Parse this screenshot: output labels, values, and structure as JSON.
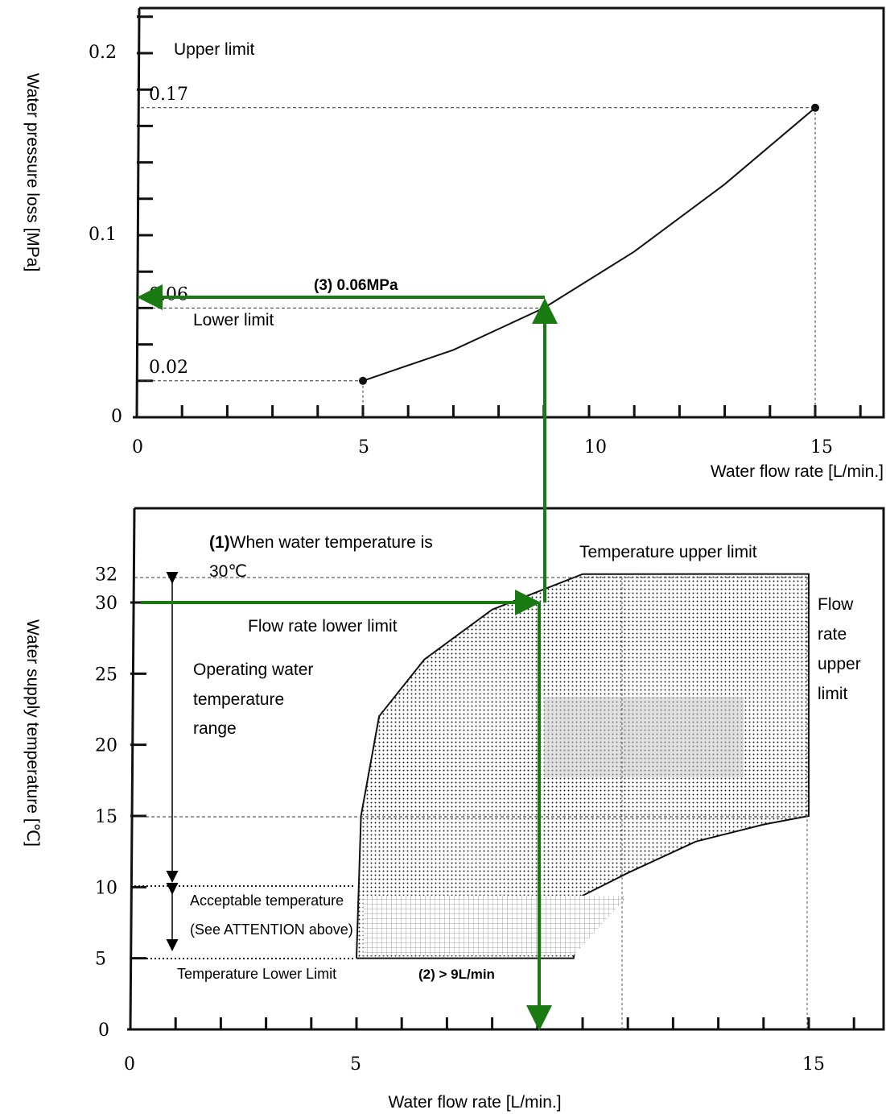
{
  "chart_data": [
    {
      "type": "line",
      "title": "",
      "xlabel": "Water flow rate [L/min.]",
      "ylabel": "Water pressure loss [MPa]",
      "xlim": [
        0,
        16
      ],
      "ylim": [
        0,
        0.23
      ],
      "x_ticks": [
        "0",
        "5",
        "10",
        "15"
      ],
      "y_ticks": [
        "0",
        "0.1",
        "0.2"
      ],
      "series": [
        {
          "x": [
            5,
            7,
            9,
            11,
            13,
            15
          ],
          "y": [
            0.02,
            0.037,
            0.06,
            0.091,
            0.128,
            0.17
          ]
        }
      ],
      "reference_values": [
        {
          "label": "0.17",
          "x": 15,
          "y": 0.17
        },
        {
          "label": "0.06",
          "x": 9,
          "y": 0.06
        },
        {
          "label": "0.02",
          "x": 5,
          "y": 0.02
        }
      ],
      "annotations": {
        "upper_limit": "Upper limit",
        "lower_limit": "Lower limit",
        "step3": "(3) 0.06MPa"
      }
    },
    {
      "type": "area",
      "title": "",
      "xlabel": "Water flow rate [L/min.]",
      "ylabel": "Water supply temperature [℃]",
      "xlim": [
        0,
        16
      ],
      "ylim": [
        0,
        36
      ],
      "x_ticks": [
        "0",
        "5",
        "15"
      ],
      "y_ticks": [
        "0",
        "5",
        "10",
        "15",
        "20",
        "25",
        "30",
        "32"
      ],
      "operating_region": {
        "temperature_range": [
          5,
          32
        ],
        "flow_rate_upper": 15,
        "flow_lower_limit_curve": {
          "x": [
            5,
            5.1,
            5.5,
            6.5,
            8,
            10
          ],
          "y": [
            5,
            15,
            22,
            26,
            29.5,
            32
          ]
        },
        "flow_lower_limit_curve_bottom": {
          "x": [
            10,
            11,
            12.5,
            14,
            15
          ],
          "y": [
            9.4,
            11,
            13.2,
            14.4,
            15
          ]
        }
      },
      "acceptable_region": {
        "temperature_range": [
          5,
          10
        ]
      },
      "annotations": {
        "step1_bold": "(1)",
        "step1_text": "When water temperature is",
        "step1_value": "30℃",
        "temp_upper": "Temperature upper limit",
        "flow_lower": "Flow rate lower limit",
        "flow_upper": [
          "Flow",
          "rate",
          "upper",
          "limit"
        ],
        "operating_range": [
          "Operating water",
          "temperature",
          "range"
        ],
        "acceptable_1": "Acceptable temperature",
        "acceptable_2": "(See ATTENTION above)",
        "temp_lower": "Temperature Lower Limit",
        "step2": "(2) > 9L/min"
      }
    }
  ],
  "colors": {
    "arrow": "#1a7a12",
    "axis": "#111111",
    "grid_dash": "#333333"
  }
}
